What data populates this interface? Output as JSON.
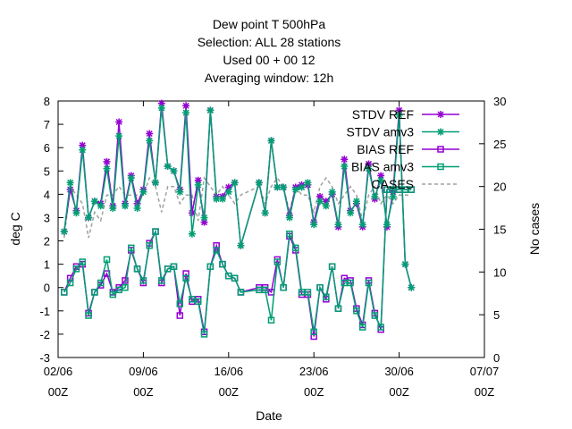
{
  "chart_data": {
    "type": "line",
    "title": [
      "Dew point T 500hPa",
      "Selection: ALL      28 stations",
      "Used  00  + 00 12",
      "Averaging window: 12h"
    ],
    "xlabel": "Date",
    "ylabel": "deg C",
    "y2label": "No cases",
    "ylim": [
      -3,
      8
    ],
    "y2lim": [
      0,
      30
    ],
    "xlim": [
      0,
      35
    ],
    "x_ticks": [
      {
        "x": 0,
        "line1": "02/06",
        "line2": "00Z"
      },
      {
        "x": 7,
        "line1": "09/06",
        "line2": "00Z"
      },
      {
        "x": 14,
        "line1": "16/06",
        "line2": "00Z"
      },
      {
        "x": 21,
        "line1": "23/06",
        "line2": "00Z"
      },
      {
        "x": 28,
        "line1": "30/06",
        "line2": "00Z"
      },
      {
        "x": 35,
        "line1": "07/07",
        "line2": "00Z"
      }
    ],
    "y_ticks": [
      -3,
      -2,
      -1,
      0,
      1,
      2,
      3,
      4,
      5,
      6,
      7,
      8
    ],
    "y2_ticks": [
      0,
      5,
      10,
      15,
      20,
      25,
      30
    ],
    "x": [
      0.5,
      1,
      1.5,
      2,
      2.5,
      3,
      3.5,
      4,
      4.5,
      5,
      5.5,
      6,
      6.5,
      7,
      7.5,
      8,
      8.5,
      9,
      9.5,
      10,
      10.5,
      11,
      11.5,
      12,
      12.5,
      13,
      13.5,
      14,
      14.5,
      15,
      16.5,
      17,
      17.5,
      18,
      18.5,
      19,
      19.5,
      20,
      20.5,
      21,
      21.5,
      22,
      22.5,
      23,
      23.5,
      24,
      24.5,
      25,
      25.5,
      26,
      26.5,
      27,
      27.5,
      28,
      28.5,
      29
    ],
    "grid": false,
    "legend_position": "top-right",
    "series": [
      {
        "name": "STDV REF",
        "color": "#9400d3",
        "marker": "star",
        "axis": "y",
        "values": [
          2.4,
          4.2,
          3.3,
          6.1,
          3.0,
          3.7,
          3.6,
          5.4,
          3.5,
          7.1,
          3.6,
          4.8,
          3.6,
          4.2,
          6.6,
          4.5,
          7.9,
          5.2,
          5.0,
          4.2,
          7.8,
          3.2,
          4.6,
          2.8,
          7.6,
          3.9,
          3.9,
          4.3,
          4.5,
          1.8,
          4.5,
          3.2,
          6.3,
          4.3,
          4.3,
          3.1,
          4.3,
          4.4,
          4.4,
          2.8,
          3.9,
          3.7,
          4.0,
          2.6,
          5.5,
          3.3,
          3.6,
          2.6,
          5.3,
          3.8,
          4.8,
          2.6,
          4.1,
          7.6,
          1.0,
          0.0
        ]
      },
      {
        "name": "STDV amv3",
        "color": "#009e73",
        "marker": "star",
        "axis": "y",
        "values": [
          2.4,
          4.5,
          3.2,
          5.9,
          3.0,
          3.7,
          3.5,
          5.1,
          3.4,
          6.5,
          3.5,
          4.7,
          3.4,
          4.1,
          6.3,
          4.5,
          7.7,
          5.2,
          5.0,
          4.1,
          7.5,
          2.3,
          4.4,
          3.0,
          7.6,
          3.8,
          3.8,
          4.1,
          4.5,
          1.8,
          4.5,
          3.2,
          6.3,
          4.3,
          4.3,
          3.0,
          4.2,
          4.3,
          4.5,
          2.7,
          3.7,
          3.5,
          4.1,
          2.7,
          5.2,
          3.2,
          3.7,
          2.7,
          5.1,
          3.9,
          4.6,
          2.7,
          3.9,
          7.4,
          1.0,
          0.0
        ]
      },
      {
        "name": "BIAS REF",
        "color": "#9400d3",
        "marker": "square",
        "axis": "y",
        "values": [
          -0.2,
          0.4,
          0.9,
          1.0,
          -1.1,
          -0.2,
          0.1,
          0.6,
          -0.2,
          0.0,
          0.3,
          1.6,
          0.8,
          0.2,
          1.9,
          2.4,
          0.2,
          0.8,
          0.9,
          -1.2,
          0.6,
          -0.6,
          -0.5,
          -1.9,
          0.9,
          1.8,
          1.0,
          0.5,
          0.4,
          -0.2,
          0.0,
          0.0,
          -0.2,
          1.2,
          0.0,
          2.2,
          1.6,
          -0.3,
          -0.3,
          -2.1,
          0.0,
          -0.5,
          0.9,
          -0.9,
          0.4,
          0.3,
          -0.9,
          -1.6,
          0.3,
          -1.1,
          -1.8,
          4.2,
          4.2,
          4.2,
          4.2,
          4.2
        ]
      },
      {
        "name": "BIAS amv3",
        "color": "#009e73",
        "marker": "square",
        "axis": "y",
        "values": [
          -0.2,
          0.2,
          0.8,
          1.1,
          -1.2,
          -0.2,
          0.2,
          1.2,
          -0.3,
          -0.1,
          0.0,
          1.7,
          0.8,
          0.3,
          1.8,
          2.4,
          0.3,
          0.8,
          0.9,
          -0.7,
          0.4,
          -0.5,
          -0.6,
          -2.0,
          0.9,
          1.6,
          1.0,
          0.5,
          0.4,
          -0.2,
          -0.1,
          -0.1,
          -1.4,
          1.1,
          0.0,
          2.3,
          1.7,
          -0.2,
          -0.2,
          -1.9,
          0.0,
          -0.4,
          0.9,
          -0.9,
          0.2,
          0.2,
          -1.0,
          -1.7,
          0.2,
          -1.2,
          -1.7,
          4.2,
          4.2,
          4.2,
          4.2,
          4.2
        ]
      },
      {
        "name": "CASES",
        "color": "#a0a0a0",
        "marker": "none",
        "dash": true,
        "axis": "y2",
        "values": [
          14,
          20,
          19,
          18,
          14,
          17,
          16,
          19,
          19,
          20,
          19,
          19,
          19,
          19,
          21,
          20,
          17,
          20,
          20,
          18,
          19,
          19,
          16,
          21,
          20,
          19,
          20,
          19,
          18,
          19,
          20,
          18,
          20,
          21,
          20,
          17,
          20,
          19,
          19,
          17,
          20,
          21,
          20,
          18,
          19,
          20,
          19,
          16,
          19,
          20,
          18,
          19,
          18,
          19,
          19,
          19
        ]
      }
    ]
  }
}
